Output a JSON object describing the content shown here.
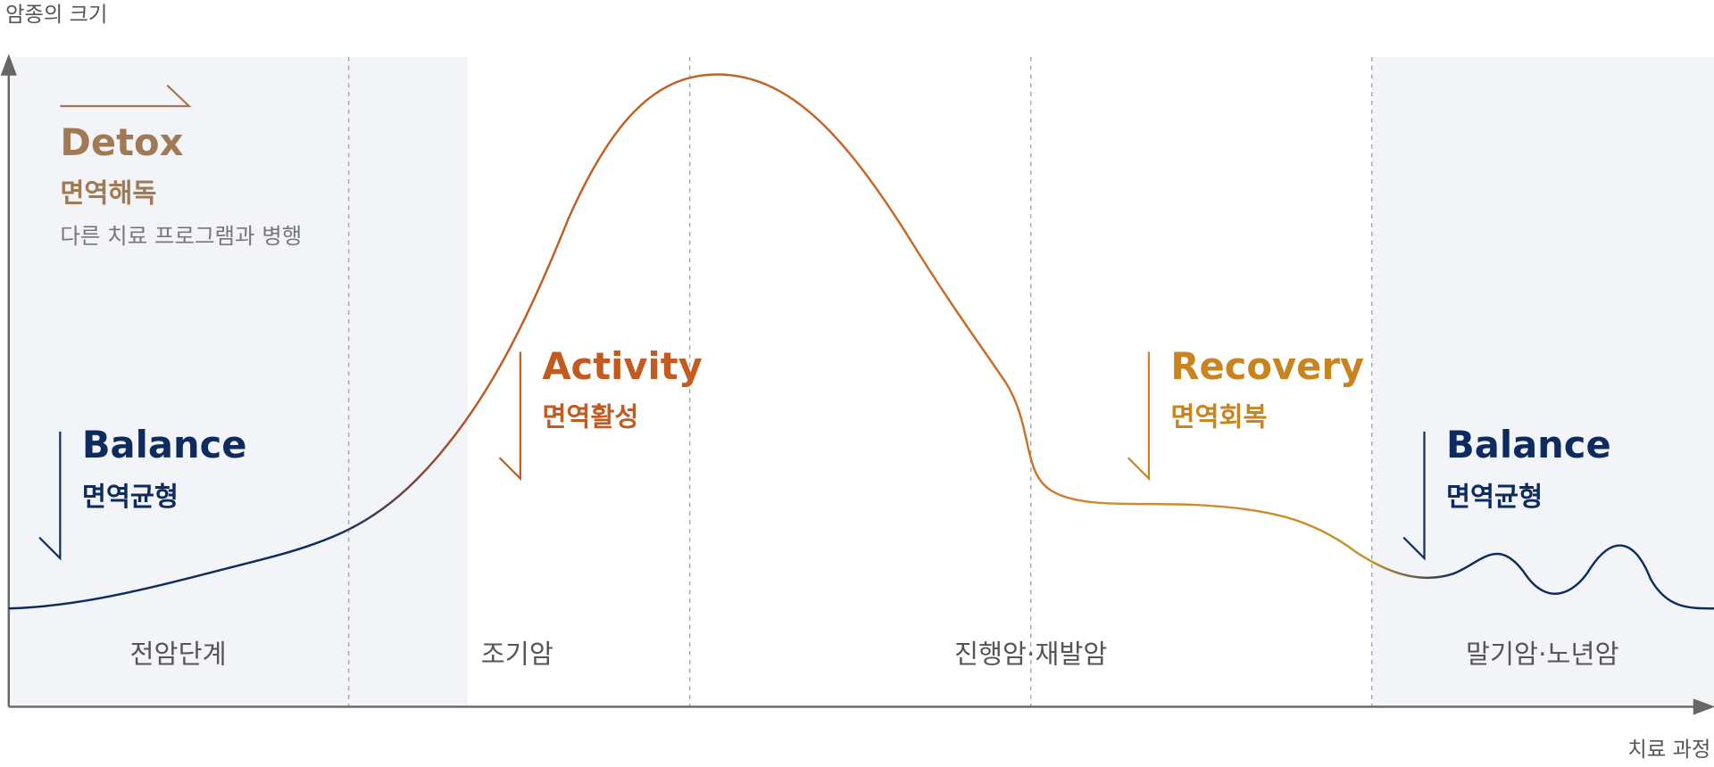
{
  "axes": {
    "y_label": "암종의 크기",
    "x_label": "치료 과정"
  },
  "phases": [
    {
      "title": "Detox",
      "subtitle": "면역해독",
      "note": "다른 치료 프로그램과 병행"
    },
    {
      "title": "Balance",
      "subtitle": "면역균형"
    },
    {
      "title": "Activity",
      "subtitle": "면역활성"
    },
    {
      "title": "Recovery",
      "subtitle": "면역회복"
    },
    {
      "title": "Balance",
      "subtitle": "면역균형"
    }
  ],
  "stages": [
    "전암단계",
    "조기암",
    "진행암·재발암",
    "말기암·노년암"
  ]
}
